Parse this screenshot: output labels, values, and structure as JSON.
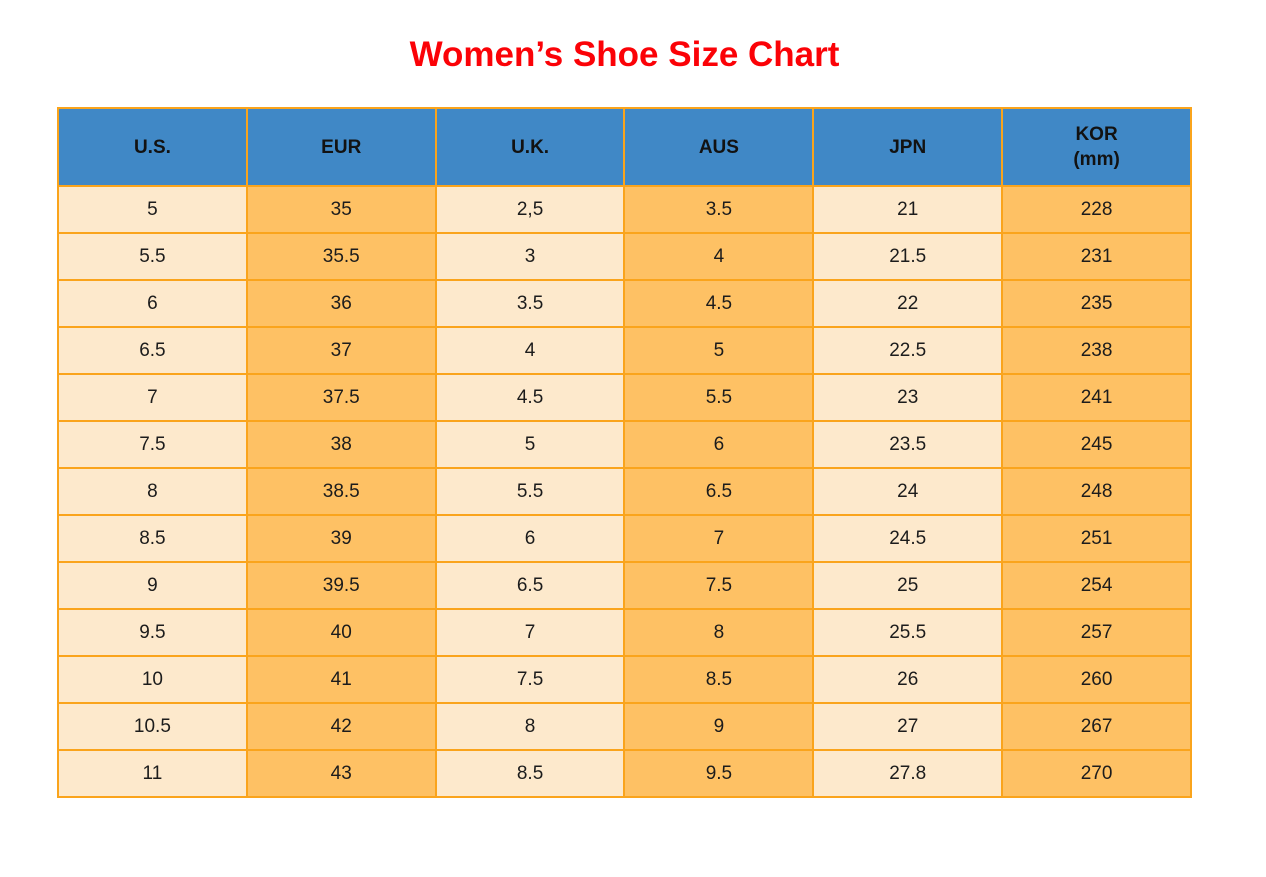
{
  "title": {
    "text": "Women’s Shoe Size Chart",
    "color": "#fb0207"
  },
  "table": {
    "colors": {
      "header_bg": "#4088c6",
      "light_cell_bg": "#fde9cc",
      "orange_cell_bg": "#fec164",
      "border": "#faa41c",
      "header_text": "#121212",
      "cell_text": "#1c1c1c"
    },
    "columns": [
      {
        "key": "us",
        "label": "U.S."
      },
      {
        "key": "eur",
        "label": "EUR"
      },
      {
        "key": "uk",
        "label": "U.K."
      },
      {
        "key": "aus",
        "label": "AUS"
      },
      {
        "key": "jpn",
        "label": "JPN"
      },
      {
        "key": "kor",
        "label": "KOR",
        "sub": "(mm)"
      }
    ]
  },
  "chart_data": {
    "type": "table",
    "title": "Women’s Shoe Size Chart",
    "columns": [
      "U.S.",
      "EUR",
      "U.K.",
      "AUS",
      "JPN",
      "KOR (mm)"
    ],
    "rows": [
      [
        "5",
        "35",
        "2,5",
        "3.5",
        "21",
        "228"
      ],
      [
        "5.5",
        "35.5",
        "3",
        "4",
        "21.5",
        "231"
      ],
      [
        "6",
        "36",
        "3.5",
        "4.5",
        "22",
        "235"
      ],
      [
        "6.5",
        "37",
        "4",
        "5",
        "22.5",
        "238"
      ],
      [
        "7",
        "37.5",
        "4.5",
        "5.5",
        "23",
        "241"
      ],
      [
        "7.5",
        "38",
        "5",
        "6",
        "23.5",
        "245"
      ],
      [
        "8",
        "38.5",
        "5.5",
        "6.5",
        "24",
        "248"
      ],
      [
        "8.5",
        "39",
        "6",
        "7",
        "24.5",
        "251"
      ],
      [
        "9",
        "39.5",
        "6.5",
        "7.5",
        "25",
        "254"
      ],
      [
        "9.5",
        "40",
        "7",
        "8",
        "25.5",
        "257"
      ],
      [
        "10",
        "41",
        "7.5",
        "8.5",
        "26",
        "260"
      ],
      [
        "10.5",
        "42",
        "8",
        "9",
        "27",
        "267"
      ],
      [
        "11",
        "43",
        "8.5",
        "9.5",
        "27.8",
        "270"
      ]
    ]
  }
}
